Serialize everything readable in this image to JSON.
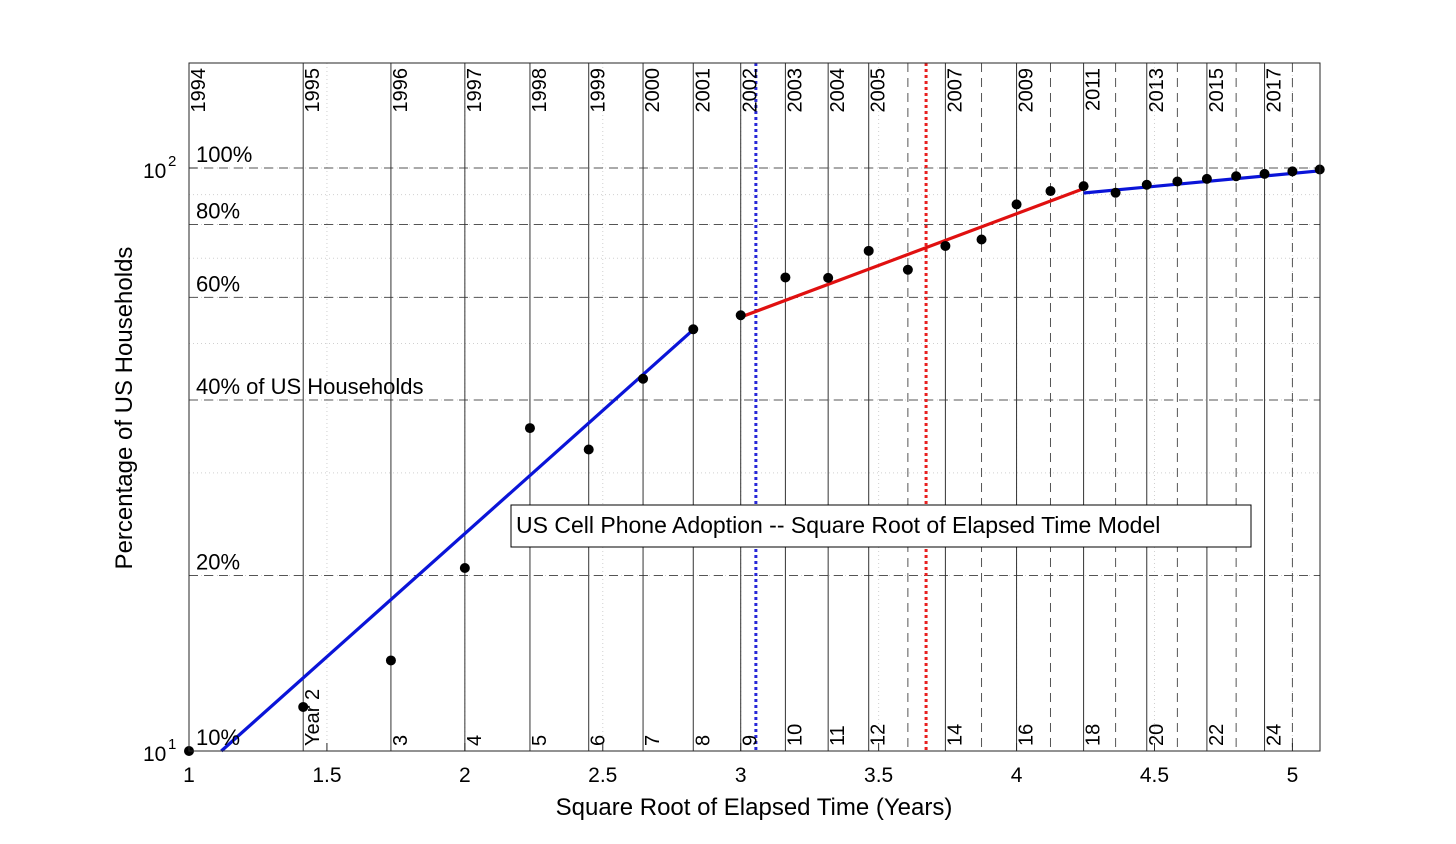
{
  "chart_data": {
    "type": "scatter",
    "title": "US Cell Phone Adoption -- Square Root of Elapsed Time Model",
    "xlabel": "Square Root of Elapsed Time (Years)",
    "ylabel": "Percentage of US Households",
    "yscale": "log",
    "xlim": [
      1,
      5.1
    ],
    "ylim": [
      10,
      160
    ],
    "grid": true,
    "x_ticks": [
      1,
      1.5,
      2,
      2.5,
      3,
      3.5,
      4,
      4.5,
      5
    ],
    "x_tick_labels": [
      "1",
      "1.5",
      "2",
      "2.5",
      "3",
      "3.5",
      "4",
      "4.5",
      "5"
    ],
    "y_ticks": [
      10,
      100
    ],
    "y_tick_labels": [
      {
        "base": "10",
        "exp": "1"
      },
      {
        "base": "10",
        "exp": "2"
      }
    ],
    "percent_lines": [
      {
        "value": 10,
        "label": "10%"
      },
      {
        "value": 20,
        "label": "20%"
      },
      {
        "value": 40,
        "label": "40% of US Households"
      },
      {
        "value": 60,
        "label": "60%"
      },
      {
        "value": 80,
        "label": "80%"
      },
      {
        "value": 100,
        "label": "100%"
      }
    ],
    "data_points": [
      {
        "x": 1.0,
        "y": 10.0
      },
      {
        "x": 1.414,
        "y": 11.9
      },
      {
        "x": 1.732,
        "y": 14.3
      },
      {
        "x": 2.0,
        "y": 20.6
      },
      {
        "x": 2.236,
        "y": 35.8
      },
      {
        "x": 2.449,
        "y": 32.9
      },
      {
        "x": 2.646,
        "y": 43.5
      },
      {
        "x": 2.828,
        "y": 52.9
      },
      {
        "x": 3.0,
        "y": 55.9
      },
      {
        "x": 3.162,
        "y": 64.9
      },
      {
        "x": 3.317,
        "y": 64.8
      },
      {
        "x": 3.464,
        "y": 72.1
      },
      {
        "x": 3.606,
        "y": 66.9
      },
      {
        "x": 3.742,
        "y": 73.5
      },
      {
        "x": 3.873,
        "y": 75.4
      },
      {
        "x": 4.0,
        "y": 86.6
      },
      {
        "x": 4.123,
        "y": 91.3
      },
      {
        "x": 4.243,
        "y": 93.1
      },
      {
        "x": 4.359,
        "y": 90.7
      },
      {
        "x": 4.472,
        "y": 93.6
      },
      {
        "x": 4.583,
        "y": 94.8
      },
      {
        "x": 4.69,
        "y": 95.8
      },
      {
        "x": 4.796,
        "y": 96.8
      },
      {
        "x": 4.899,
        "y": 97.7
      },
      {
        "x": 5.0,
        "y": 98.7
      },
      {
        "x": 5.099,
        "y": 99.4
      }
    ],
    "series": [
      {
        "color": "#0a14d8",
        "points": [
          [
            1.117,
            10.0
          ],
          [
            2.828,
            52.8
          ]
        ]
      },
      {
        "color": "#e01010",
        "points": [
          [
            3.0,
            55.5
          ],
          [
            4.243,
            92.2
          ]
        ]
      },
      {
        "color": "#0a14d8",
        "points": [
          [
            4.243,
            90.6
          ],
          [
            5.1,
            98.9
          ]
        ]
      }
    ],
    "markers": [
      {
        "x": 3.055,
        "color": "#2828d8",
        "style": "dotted"
      },
      {
        "x": 3.672,
        "color": "#e82020",
        "style": "dotted"
      }
    ],
    "calendar_years": [
      {
        "label": "1994",
        "x": 1.0,
        "style": "solid"
      },
      {
        "label": "1995",
        "x": 1.414,
        "style": "solid"
      },
      {
        "label": "1996",
        "x": 1.732,
        "style": "solid"
      },
      {
        "label": "1997",
        "x": 2.0,
        "style": "solid"
      },
      {
        "label": "1998",
        "x": 2.236,
        "style": "solid"
      },
      {
        "label": "1999",
        "x": 2.449,
        "style": "solid"
      },
      {
        "label": "2000",
        "x": 2.646,
        "style": "solid"
      },
      {
        "label": "2001",
        "x": 2.828,
        "style": "solid"
      },
      {
        "label": "2002",
        "x": 3.0,
        "style": "solid"
      },
      {
        "label": "2003",
        "x": 3.162,
        "style": "solid"
      },
      {
        "label": "2004",
        "x": 3.317,
        "style": "solid"
      },
      {
        "label": "2005",
        "x": 3.464,
        "style": "solid"
      },
      {
        "label": "",
        "x": 3.606,
        "style": "dashed"
      },
      {
        "label": "2007",
        "x": 3.742,
        "style": "solid"
      },
      {
        "label": "",
        "x": 3.873,
        "style": "dashed"
      },
      {
        "label": "2009",
        "x": 4.0,
        "style": "solid"
      },
      {
        "label": "",
        "x": 4.123,
        "style": "dashed"
      },
      {
        "label": "2011",
        "x": 4.243,
        "style": "solid"
      },
      {
        "label": "",
        "x": 4.359,
        "style": "dashed"
      },
      {
        "label": "2013",
        "x": 4.472,
        "style": "solid"
      },
      {
        "label": "",
        "x": 4.583,
        "style": "dashed"
      },
      {
        "label": "2015",
        "x": 4.69,
        "style": "solid"
      },
      {
        "label": "",
        "x": 4.796,
        "style": "dashed"
      },
      {
        "label": "2017",
        "x": 4.899,
        "style": "solid"
      },
      {
        "label": "",
        "x": 5.0,
        "style": "dashed"
      }
    ],
    "elapsed_years": [
      {
        "label": "Year 2",
        "x": 1.414
      },
      {
        "label": "3",
        "x": 1.732
      },
      {
        "label": "4",
        "x": 2.0
      },
      {
        "label": "5",
        "x": 2.236
      },
      {
        "label": "6",
        "x": 2.449
      },
      {
        "label": "7",
        "x": 2.646
      },
      {
        "label": "8",
        "x": 2.828
      },
      {
        "label": "9",
        "x": 3.0
      },
      {
        "label": "10",
        "x": 3.162
      },
      {
        "label": "11",
        "x": 3.317
      },
      {
        "label": "12",
        "x": 3.464
      },
      {
        "label": "14",
        "x": 3.742
      },
      {
        "label": "16",
        "x": 4.0
      },
      {
        "label": "18",
        "x": 4.243
      },
      {
        "label": "20",
        "x": 4.472
      },
      {
        "label": "22",
        "x": 4.69
      },
      {
        "label": "24",
        "x": 4.899
      }
    ]
  }
}
